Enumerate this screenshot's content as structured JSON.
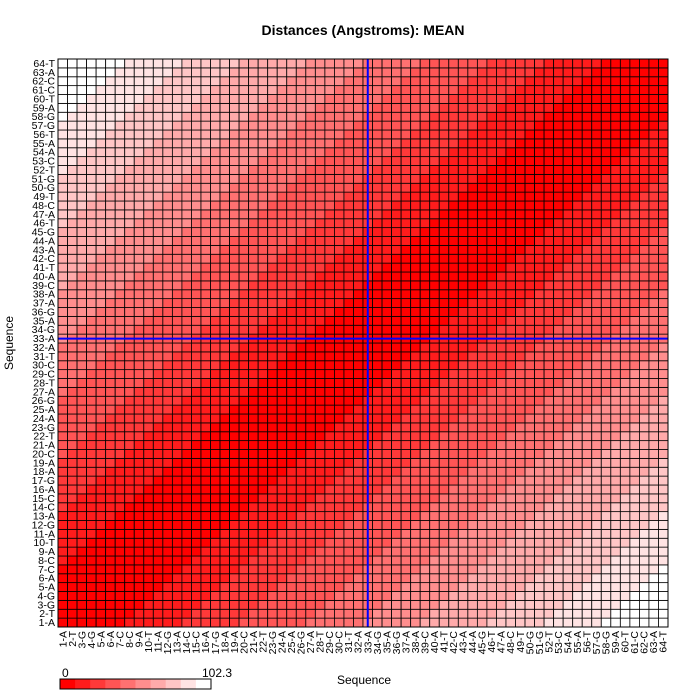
{
  "chart_data": {
    "type": "heatmap",
    "title": "Distances (Angstroms):  MEAN",
    "xlabel": "Sequence",
    "ylabel": "Sequence",
    "sequence": [
      "1-A",
      "2-T",
      "3-G",
      "4-G",
      "5-A",
      "6-A",
      "7-C",
      "8-C",
      "9-A",
      "10-T",
      "11-A",
      "12-G",
      "13-A",
      "14-C",
      "15-C",
      "16-A",
      "17-G",
      "18-A",
      "19-A",
      "20-C",
      "21-A",
      "22-T",
      "23-G",
      "24-A",
      "25-A",
      "26-G",
      "27-A",
      "28-T",
      "29-C",
      "30-C",
      "31-T",
      "32-A",
      "33-A",
      "34-G",
      "35-A",
      "36-G",
      "37-A",
      "38-A",
      "39-C",
      "40-A",
      "41-T",
      "42-C",
      "43-A",
      "44-A",
      "45-G",
      "46-T",
      "47-A",
      "48-C",
      "49-T",
      "50-G",
      "51-G",
      "52-T",
      "53-C",
      "54-A",
      "55-A",
      "56-T",
      "57-G",
      "58-G",
      "59-A",
      "60-T",
      "61-C",
      "62-C",
      "63-A",
      "64-T"
    ],
    "matrix_rule": "value(i,j) = 102.3 * |i - j| / 63 (mean distance, approximate)",
    "color_scale": {
      "min_label": "0",
      "max_label": "102.3",
      "min_color": "#ff0000",
      "max_color": "#ffffff",
      "steps": 10
    },
    "highlight": {
      "index": 33,
      "label": "33-A",
      "color": "#0000ff"
    },
    "grid": true
  }
}
